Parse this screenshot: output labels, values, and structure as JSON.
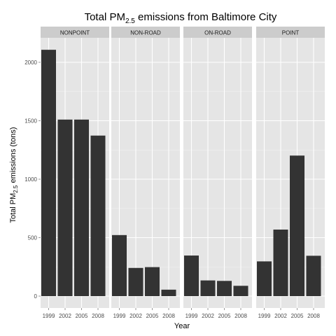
{
  "chart_data": {
    "type": "bar",
    "title": {
      "main": "Total PM",
      "sub": "2.5",
      "rest": " emissions from Baltimore City"
    },
    "xlabel": "Year",
    "ylabel": {
      "main": "Total PM",
      "sub": "2.5",
      "rest": " emissions (tons)"
    },
    "categories": [
      "1999",
      "2002",
      "2005",
      "2008"
    ],
    "ylim": [
      0,
      2200
    ],
    "yticks": [
      0,
      500,
      1000,
      1500,
      2000
    ],
    "panels": [
      {
        "name": "NONPOINT",
        "values": [
          2107,
          1510,
          1510,
          1373
        ]
      },
      {
        "name": "NON-ROAD",
        "values": [
          522,
          241,
          248,
          55
        ]
      },
      {
        "name": "ON-ROAD",
        "values": [
          347,
          134,
          130,
          88
        ]
      },
      {
        "name": "POINT",
        "values": [
          297,
          569,
          1202,
          345
        ]
      }
    ],
    "colors": {
      "bar": "#333333",
      "panel_bg": "#e5e5e5",
      "strip_bg": "#cccccc",
      "grid_major": "#ffffff",
      "grid_minor": "#f2f2f2"
    }
  }
}
